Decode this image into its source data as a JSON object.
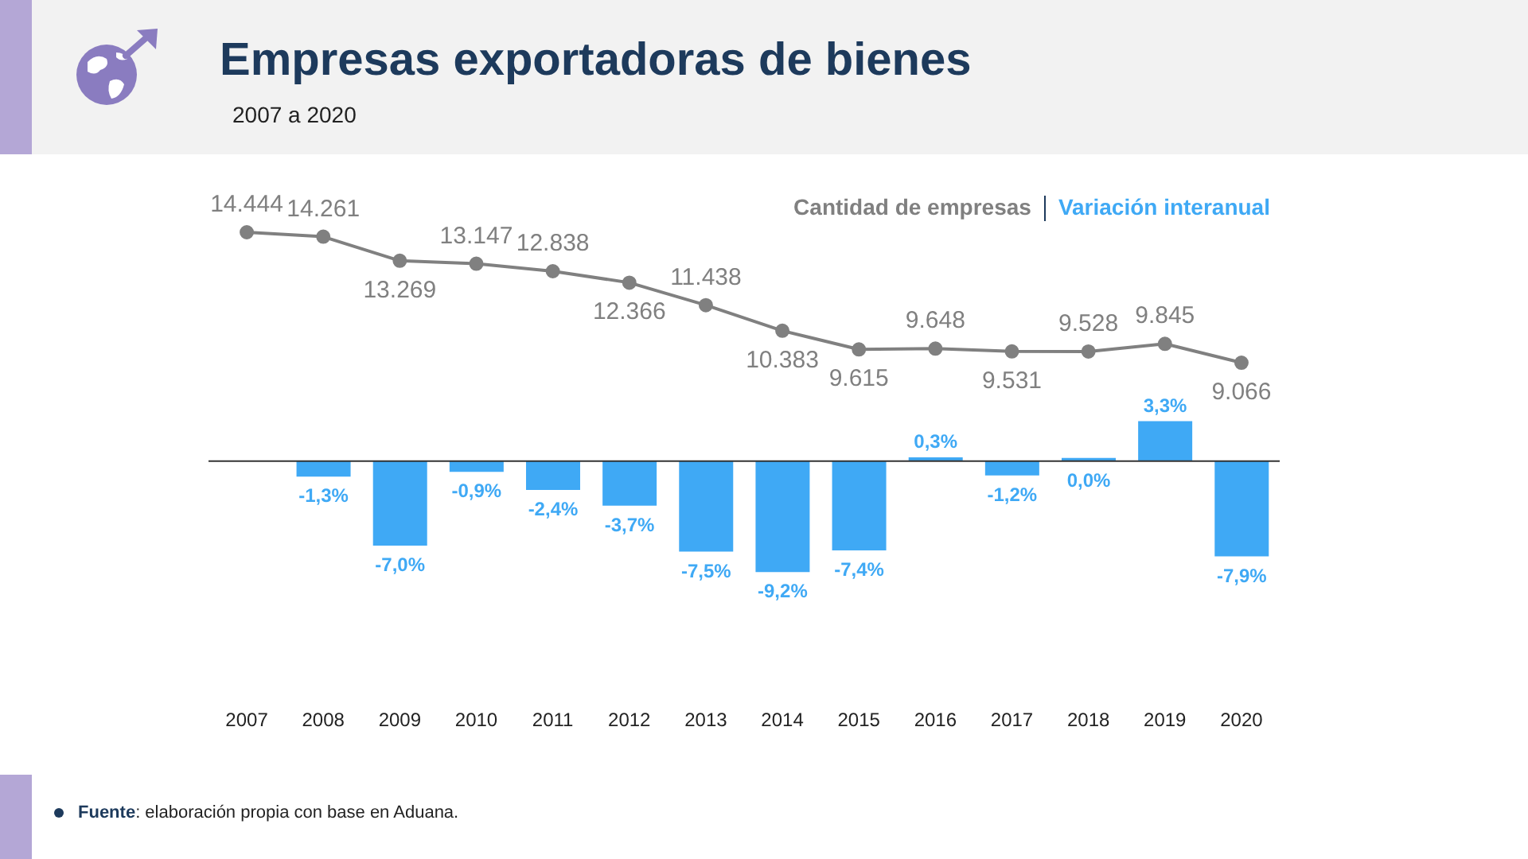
{
  "chart_data": [
    {
      "type": "line",
      "title": "Empresas exportadoras de bienes",
      "subtitle": "2007 a 2020",
      "categories": [
        "2007",
        "2008",
        "2009",
        "2010",
        "2011",
        "2012",
        "2013",
        "2014",
        "2015",
        "2016",
        "2017",
        "2018",
        "2019",
        "2020"
      ],
      "series": [
        {
          "name": "Cantidad de empresas",
          "color": "#808080",
          "values": [
            14444,
            14261,
            13269,
            13147,
            12838,
            12366,
            11438,
            10383,
            9615,
            9648,
            9531,
            9528,
            9845,
            9066
          ],
          "value_labels": [
            "14.444",
            "14.261",
            "13.269",
            "13.147",
            "12.838",
            "12.366",
            "11.438",
            "10.383",
            "9.615",
            "9.648",
            "9.531",
            "9.528",
            "9.845",
            "9.066"
          ]
        }
      ],
      "marker": "circle",
      "legend": "top right",
      "tick_labels": false
    },
    {
      "type": "bar",
      "categories": [
        "2007",
        "2008",
        "2009",
        "2010",
        "2011",
        "2012",
        "2013",
        "2014",
        "2015",
        "2016",
        "2017",
        "2018",
        "2019",
        "2020"
      ],
      "series": [
        {
          "name": "Variación interanual",
          "color": "#3fa9f5",
          "values": [
            null,
            -1.3,
            -7.0,
            -0.9,
            -2.4,
            -3.7,
            -7.5,
            -9.2,
            -7.4,
            0.3,
            -1.2,
            0.0,
            3.3,
            -7.9
          ],
          "value_labels": [
            null,
            "-1,3%",
            "-7,0%",
            "-0,9%",
            "-2,4%",
            "-3,7%",
            "-7,5%",
            "-9,2%",
            "-7,4%",
            "0,3%",
            "-1,2%",
            "0,0%",
            "3,3%",
            "-7,9%"
          ]
        }
      ],
      "legend": "top right",
      "tick_labels": "x",
      "annotations": [
        "Fuente: elaboración propia con base en Aduana."
      ]
    }
  ]
}
